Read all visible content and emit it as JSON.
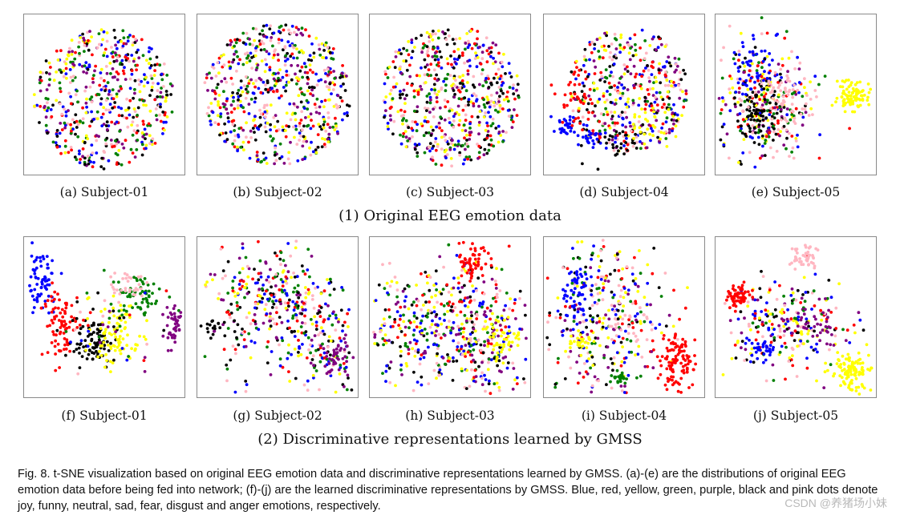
{
  "figure": {
    "group1_title": "(1) Original EEG emotion data",
    "group2_title": "(2) Discriminative representations learned by GMSS",
    "caption": "Fig. 8.  t-SNE visualization based on original EEG emotion data and discriminative representations learned by GMSS. (a)-(e) are the distributions of original EEG emotion data before being fed into network; (f)-(j) are the learned discriminative representations by GMSS. Blue, red, yellow, green, purple, black and pink dots denote joy, funny, neutral, sad, fear, disgust and anger emotions, respectively.",
    "watermark": "CSDN @养猪场小妹"
  },
  "emotion_colors": {
    "joy": "#0000ff",
    "funny": "#ff0000",
    "neutral": "#ffff00",
    "sad": "#008000",
    "fear": "#800080",
    "disgust": "#000000",
    "anger": "#ffb6c1"
  },
  "panels": [
    {
      "label": "(a) Subject-01"
    },
    {
      "label": "(b) Subject-02"
    },
    {
      "label": "(c) Subject-03"
    },
    {
      "label": "(d) Subject-04"
    },
    {
      "label": "(e) Subject-05"
    },
    {
      "label": "(f) Subject-01"
    },
    {
      "label": "(g) Subject-02"
    },
    {
      "label": "(h) Subject-03"
    },
    {
      "label": "(i) Subject-04"
    },
    {
      "label": "(j) Subject-05"
    }
  ]
}
